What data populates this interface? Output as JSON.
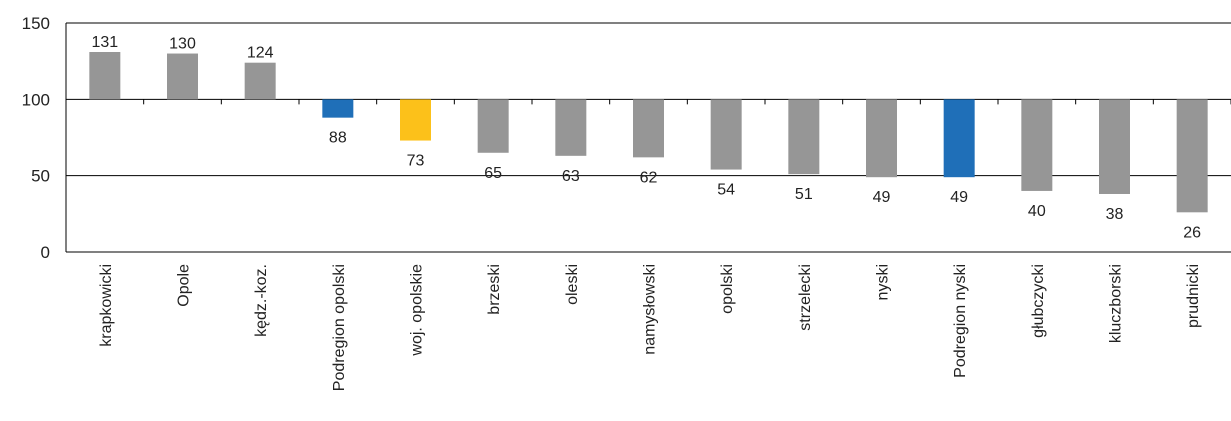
{
  "chart_data": {
    "type": "bar",
    "title": "",
    "xlabel": "",
    "ylabel": "",
    "ylim": [
      0,
      150
    ],
    "baseline": 100,
    "yticks": [
      0,
      50,
      100,
      150
    ],
    "grid": true,
    "categories": [
      "krapkowicki",
      "Opole",
      "kędz.-koz.",
      "Podregion opolski",
      "woj. opolskie",
      "brzeski",
      "oleski",
      "namysłowski",
      "opolski",
      "strzelecki",
      "nyski",
      "Podregion nyski",
      "głubczycki",
      "kluczborski",
      "prudnicki"
    ],
    "values": [
      131,
      130,
      124,
      88,
      73,
      65,
      63,
      62,
      54,
      51,
      49,
      49,
      40,
      38,
      26
    ],
    "bar_colors": [
      "#969696",
      "#969696",
      "#969696",
      "#1f6fb8",
      "#fcc11a",
      "#969696",
      "#969696",
      "#969696",
      "#969696",
      "#969696",
      "#969696",
      "#1f6fb8",
      "#969696",
      "#969696",
      "#969696"
    ]
  }
}
